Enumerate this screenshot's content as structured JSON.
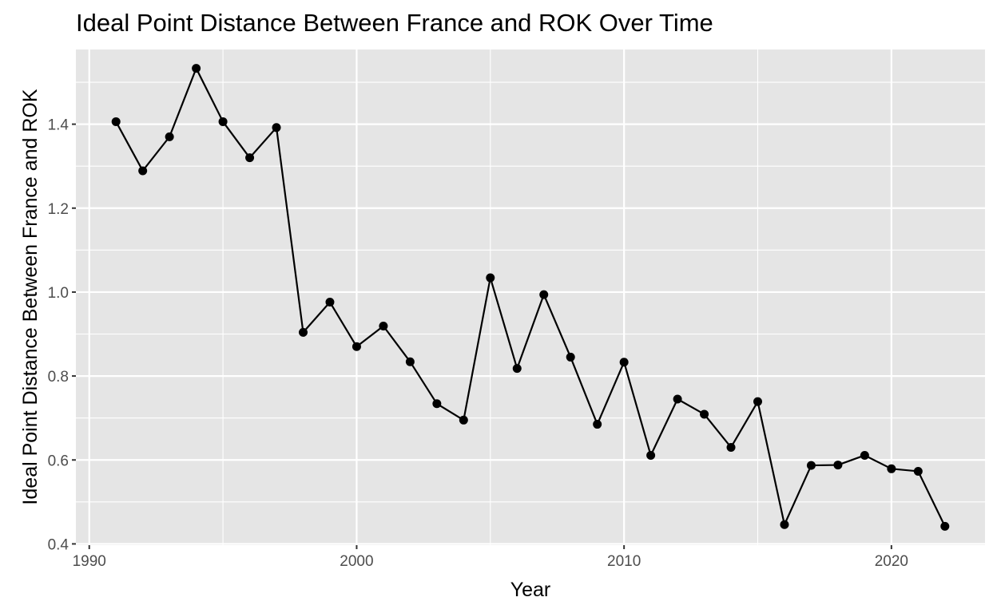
{
  "chart_data": {
    "type": "line",
    "title": "Ideal Point Distance Between France and ROK Over Time",
    "xlabel": "Year",
    "ylabel": "Ideal Point Distance Between France and ROK",
    "x": [
      1991,
      1992,
      1993,
      1994,
      1995,
      1996,
      1997,
      1998,
      1999,
      2000,
      2001,
      2002,
      2003,
      2004,
      2005,
      2006,
      2007,
      2008,
      2009,
      2010,
      2011,
      2012,
      2013,
      2014,
      2015,
      2016,
      2017,
      2018,
      2019,
      2020,
      2021,
      2022
    ],
    "y": [
      1.406,
      1.289,
      1.37,
      1.533,
      1.406,
      1.32,
      1.392,
      0.904,
      0.976,
      0.87,
      0.919,
      0.834,
      0.734,
      0.695,
      1.034,
      0.818,
      0.994,
      0.845,
      0.685,
      0.833,
      0.611,
      0.745,
      0.709,
      0.63,
      0.739,
      0.446,
      0.587,
      0.588,
      0.611,
      0.579,
      0.573,
      0.442
    ],
    "xlim": [
      1989.5,
      2023.5
    ],
    "ylim": [
      0.397,
      1.578
    ],
    "x_ticks": [
      1990,
      2000,
      2010,
      2020
    ],
    "x_tick_labels": [
      "1990",
      "2000",
      "2010",
      "2020"
    ],
    "x_minor_ticks": [
      1995,
      2005,
      2015
    ],
    "y_ticks": [
      0.4,
      0.6,
      0.8,
      1.0,
      1.2,
      1.4
    ],
    "y_tick_labels": [
      "0.4",
      "0.6",
      "0.8",
      "1.0",
      "1.2",
      "1.4"
    ],
    "y_minor_ticks": [
      0.5,
      0.7,
      0.9,
      1.1,
      1.3,
      1.5
    ],
    "grid": true,
    "legend": "none",
    "colors": {
      "panel": "#e5e5e5",
      "grid": "#ffffff",
      "line": "#000000",
      "point": "#000000",
      "tick_text": "#4d4d4d",
      "tick_mark": "#333333"
    }
  }
}
